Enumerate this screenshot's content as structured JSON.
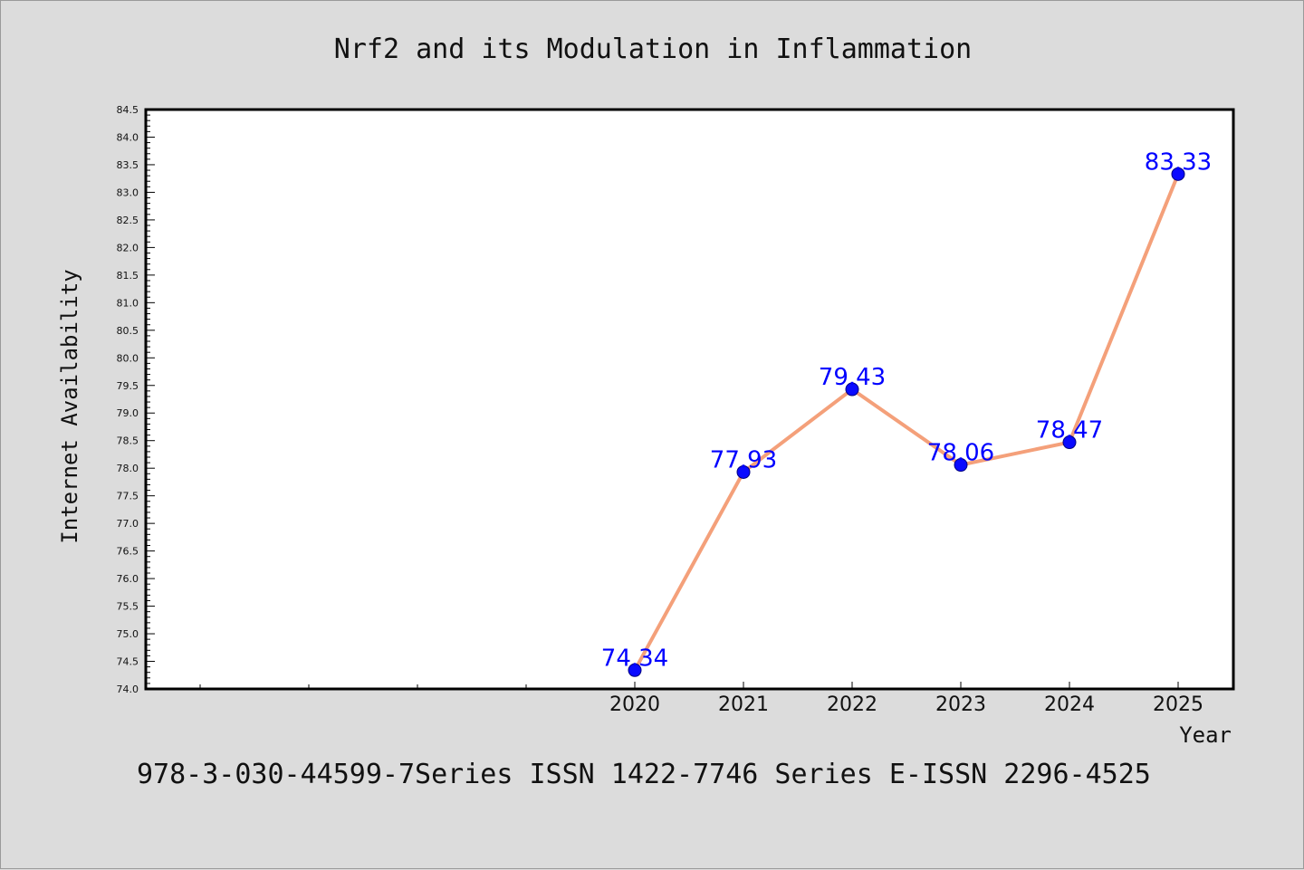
{
  "chart_data": {
    "type": "line",
    "title": "Nrf2 and its Modulation in Inflammation",
    "xlabel": "Year",
    "ylabel": "Internet Availability",
    "footer": "978-3-030-44599-7Series ISSN 1422-7746 Series E-ISSN 2296-4525",
    "ylim": [
      74.0,
      84.5
    ],
    "y_ticks": [
      "74.0",
      "74.5",
      "75.0",
      "75.5",
      "76.0",
      "76.5",
      "77.0",
      "77.5",
      "78.0",
      "78.5",
      "79.0",
      "79.5",
      "80.0",
      "80.5",
      "81.0",
      "81.5",
      "82.0",
      "82.5",
      "83.0",
      "83.5",
      "84.0",
      "84.5"
    ],
    "x_tick_labels": [
      "2020",
      "2021",
      "2022",
      "2023",
      "2024",
      "2025"
    ],
    "series": [
      {
        "x": [
          "2020",
          "2021",
          "2022",
          "2023",
          "2024",
          "2025"
        ],
        "values": [
          74.34,
          77.93,
          79.43,
          78.06,
          78.47,
          83.33
        ],
        "labels": [
          "74.34",
          "77.93",
          "79.43",
          "78.06",
          "78.47",
          "83.33"
        ]
      }
    ],
    "grid": false,
    "colors": {
      "line": "#f4a07a",
      "marker": "#0a0aff",
      "marker_edge": "#000080",
      "label": "#0000ff"
    }
  }
}
